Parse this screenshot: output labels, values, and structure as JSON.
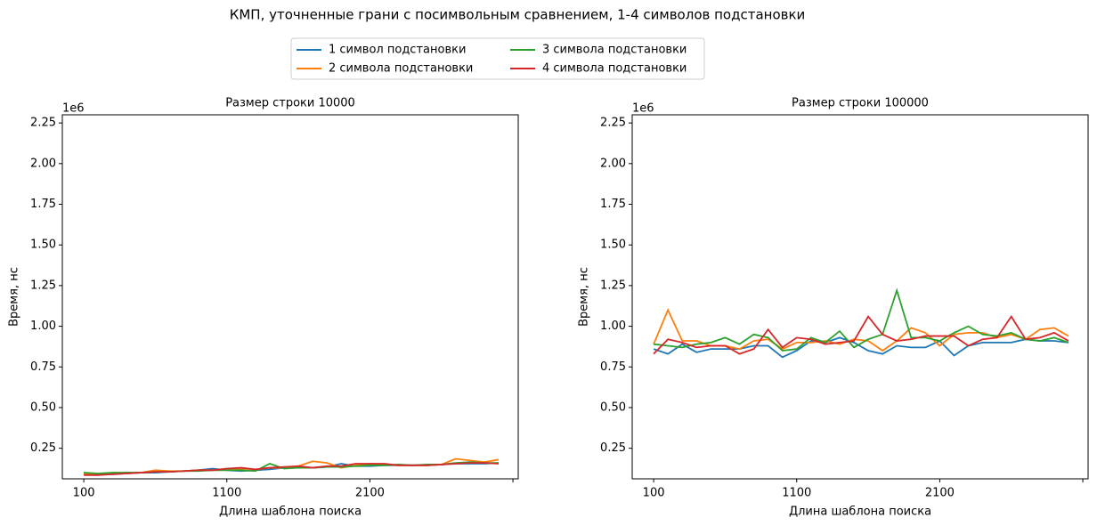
{
  "title": "КМП, уточненные грани с посимвольным сравнением, 1-4 символов подстановки",
  "legend_loc": "upper center",
  "chart_data": [
    {
      "type": "line",
      "title": "Размер строки 10000",
      "xlabel": "Длина шаблона поиска",
      "ylabel": "Время, нс",
      "y_offset_label": "1e6",
      "x": [
        100,
        200,
        300,
        400,
        500,
        600,
        700,
        800,
        900,
        1000,
        1100,
        1200,
        1300,
        1400,
        1500,
        1600,
        1700,
        1800,
        1900,
        2000,
        2100,
        2200,
        2300,
        2400,
        2500,
        2600,
        2700,
        2800,
        2900,
        3000
      ],
      "xlim": [
        -50,
        3137
      ],
      "ylim": [
        0.062,
        2.3
      ],
      "xticks": [
        100,
        1100,
        2100,
        {
          "value": 3100,
          "label": null
        }
      ],
      "yticks": [
        0.25,
        {
          "value": 0.5,
          "label": "0.50"
        },
        0.75,
        {
          "value": 1,
          "label": "1.00"
        },
        1.25,
        {
          "value": 1.5,
          "label": "1.50"
        },
        1.75,
        {
          "value": 2,
          "label": "2.00"
        },
        2.25
      ],
      "series": [
        {
          "name": "1 символ подстановки",
          "color": "#1f77b4",
          "values": [
            0.09,
            0.09,
            0.09,
            0.095,
            0.1,
            0.1,
            0.105,
            0.11,
            0.115,
            0.125,
            0.115,
            0.11,
            0.115,
            0.12,
            0.13,
            0.13,
            0.13,
            0.135,
            0.155,
            0.14,
            0.14,
            0.145,
            0.145,
            0.145,
            0.145,
            0.15,
            0.155,
            0.155,
            0.155,
            0.16
          ]
        },
        {
          "name": "2 символа подстановки",
          "color": "#ff7f0e",
          "values": [
            0.09,
            0.09,
            0.095,
            0.1,
            0.1,
            0.115,
            0.11,
            0.11,
            0.115,
            0.115,
            0.12,
            0.125,
            0.12,
            0.13,
            0.13,
            0.14,
            0.17,
            0.16,
            0.13,
            0.145,
            0.155,
            0.15,
            0.145,
            0.145,
            0.145,
            0.15,
            0.185,
            0.175,
            0.165,
            0.18
          ]
        },
        {
          "name": "3 символа подстановки",
          "color": "#2ca02c",
          "values": [
            0.1,
            0.095,
            0.1,
            0.1,
            0.1,
            0.105,
            0.105,
            0.11,
            0.11,
            0.115,
            0.115,
            0.115,
            0.11,
            0.155,
            0.125,
            0.13,
            0.13,
            0.135,
            0.135,
            0.14,
            0.145,
            0.145,
            0.15,
            0.145,
            0.15,
            0.15,
            0.16,
            0.165,
            0.16,
            0.16
          ]
        },
        {
          "name": "4 символа подстановки",
          "color": "#d62728",
          "values": [
            0.085,
            0.085,
            0.09,
            0.095,
            0.1,
            0.105,
            0.105,
            0.11,
            0.115,
            0.115,
            0.125,
            0.13,
            0.12,
            0.13,
            0.135,
            0.14,
            0.13,
            0.14,
            0.14,
            0.155,
            0.155,
            0.155,
            0.145,
            0.145,
            0.145,
            0.15,
            0.155,
            0.16,
            0.16,
            0.155
          ]
        }
      ]
    },
    {
      "type": "line",
      "title": "Размер строки 100000",
      "xlabel": "Длина шаблона поиска",
      "ylabel": "Время, нс",
      "y_offset_label": "1e6",
      "x": [
        100,
        200,
        300,
        400,
        500,
        600,
        700,
        800,
        900,
        1000,
        1100,
        1200,
        1300,
        1400,
        1500,
        1600,
        1700,
        1800,
        1900,
        2000,
        2100,
        2200,
        2300,
        2400,
        2500,
        2600,
        2700,
        2800,
        2900,
        3000
      ],
      "xlim": [
        -50,
        3137
      ],
      "ylim": [
        0.062,
        2.3
      ],
      "xticks": [
        100,
        1100,
        2100,
        {
          "value": 3100,
          "label": null
        }
      ],
      "yticks": [
        0.25,
        {
          "value": 0.5,
          "label": "0.50"
        },
        0.75,
        {
          "value": 1,
          "label": "1.00"
        },
        1.25,
        {
          "value": 1.5,
          "label": "1.50"
        },
        1.75,
        {
          "value": 2,
          "label": "2.00"
        },
        2.25
      ],
      "series": [
        {
          "name": "1 символ подстановки",
          "color": "#1f77b4",
          "values": [
            0.86,
            0.83,
            0.89,
            0.84,
            0.86,
            0.86,
            0.86,
            0.88,
            0.88,
            0.81,
            0.85,
            0.91,
            0.9,
            0.93,
            0.9,
            0.85,
            0.83,
            0.88,
            0.87,
            0.87,
            0.91,
            0.82,
            0.88,
            0.9,
            0.9,
            0.9,
            0.92,
            0.91,
            0.91,
            0.9
          ]
        },
        {
          "name": "2 символа подстановки",
          "color": "#ff7f0e",
          "values": [
            0.89,
            1.1,
            0.91,
            0.91,
            0.88,
            0.88,
            0.86,
            0.91,
            0.92,
            0.86,
            0.9,
            0.9,
            0.91,
            0.89,
            0.92,
            0.91,
            0.85,
            0.91,
            0.99,
            0.96,
            0.88,
            0.95,
            0.96,
            0.96,
            0.93,
            0.95,
            0.92,
            0.98,
            0.99,
            0.94
          ]
        },
        {
          "name": "3 символа подстановки",
          "color": "#2ca02c",
          "values": [
            0.89,
            0.88,
            0.87,
            0.89,
            0.9,
            0.93,
            0.89,
            0.95,
            0.93,
            0.85,
            0.86,
            0.93,
            0.9,
            0.97,
            0.87,
            0.92,
            0.95,
            1.22,
            0.93,
            0.93,
            0.91,
            0.96,
            1.0,
            0.95,
            0.94,
            0.96,
            0.92,
            0.91,
            0.93,
            0.9
          ]
        },
        {
          "name": "4 символа подстановки",
          "color": "#d62728",
          "values": [
            0.83,
            0.92,
            0.9,
            0.87,
            0.88,
            0.88,
            0.83,
            0.86,
            0.98,
            0.87,
            0.93,
            0.92,
            0.89,
            0.9,
            0.91,
            1.06,
            0.95,
            0.91,
            0.92,
            0.94,
            0.94,
            0.94,
            0.88,
            0.92,
            0.93,
            1.06,
            0.92,
            0.93,
            0.96,
            0.91
          ]
        }
      ]
    }
  ]
}
